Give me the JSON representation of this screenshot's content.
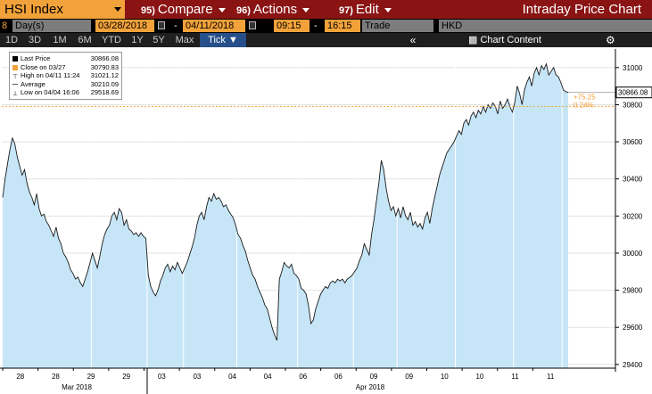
{
  "titlebar": {
    "ticker": "HSI Index",
    "menu": [
      {
        "num": "95)",
        "label": "Compare"
      },
      {
        "num": "96)",
        "label": "Actions"
      },
      {
        "num": "97)",
        "label": "Edit"
      }
    ],
    "title": "Intraday Price Chart"
  },
  "daterow": {
    "number": "8",
    "period_label": "Day(s)",
    "start_date": "03/28/2018",
    "end_date": "04/11/2018",
    "start_time": "09:15",
    "end_time": "16:15",
    "trade": "Trade",
    "currency": "HKD"
  },
  "periodrow": {
    "periods": [
      "1D",
      "3D",
      "1M",
      "6M",
      "YTD",
      "1Y",
      "5Y",
      "Max",
      "Tick ▼"
    ],
    "active": "Tick ▼",
    "collapse_icon": "double-chevron-left-icon",
    "chart_content": "Chart Content",
    "gear_icon": "gear-icon"
  },
  "legend": [
    {
      "label": "Last Price",
      "value": "30866.08",
      "icon": "square",
      "color": "#000000"
    },
    {
      "label": "Close on 03/27",
      "value": "30790.83",
      "icon": "square",
      "color": "#f2a23a"
    },
    {
      "label": "High on 04/11 11:24",
      "value": "31021.12",
      "icon": "high-marker",
      "color": "#555555"
    },
    {
      "label": "Average",
      "value": "30210.09",
      "icon": "dashed-line",
      "color": "#555555"
    },
    {
      "label": "Low on 04/04 16:06",
      "value": "29518.69",
      "icon": "low-marker",
      "color": "#555555"
    }
  ],
  "colors": {
    "area_fill": "#c6e6f7",
    "line": "#1a1a1a",
    "close_line": "#f2a23a",
    "background": "#ffffff"
  },
  "chart_data": {
    "type": "area",
    "y_ticks": [
      29400,
      29600,
      29800,
      30000,
      30200,
      30400,
      30600,
      30800,
      31000
    ],
    "ylim": [
      29380,
      31100
    ],
    "x_tick_labels": [
      "28",
      "28",
      "29",
      "29",
      "03",
      "03",
      "04",
      "04",
      "06",
      "06",
      "09",
      "09",
      "10",
      "10",
      "11",
      "11"
    ],
    "month_labels": [
      "Mar 2018",
      "Apr 2018"
    ],
    "last_price_label": "30866.08",
    "change_label": "+75.25",
    "change_pct_label": "0.24%",
    "close_value": 30790.83,
    "series": [
      {
        "name": "Last Price",
        "day_breaks_after_index": [
          36,
          59,
          74,
          96,
          121,
          144,
          162,
          186,
          210,
          230
        ],
        "values": [
          30300,
          30400,
          30480,
          30560,
          30620,
          30590,
          30520,
          30470,
          30420,
          30450,
          30380,
          30330,
          30300,
          30260,
          30320,
          30240,
          30200,
          30210,
          30170,
          30150,
          30120,
          30090,
          30140,
          30080,
          30050,
          30000,
          29980,
          29950,
          29910,
          29890,
          29860,
          29870,
          29840,
          29820,
          29860,
          29900,
          29950,
          30000,
          29960,
          29920,
          29980,
          30050,
          30100,
          30130,
          30150,
          30200,
          30220,
          30180,
          30240,
          30220,
          30150,
          30180,
          30130,
          30120,
          30100,
          30110,
          30090,
          30110,
          30090,
          30080,
          29880,
          29820,
          29790,
          29770,
          29800,
          29850,
          29880,
          29920,
          29940,
          29900,
          29930,
          29910,
          29950,
          29920,
          29890,
          29920,
          29950,
          29990,
          30030,
          30080,
          30150,
          30200,
          30220,
          30180,
          30250,
          30300,
          30280,
          30320,
          30290,
          30300,
          30280,
          30250,
          30260,
          30230,
          30210,
          30190,
          30150,
          30100,
          30080,
          30040,
          30010,
          29960,
          29920,
          29880,
          29860,
          29820,
          29790,
          29760,
          29720,
          29700,
          29650,
          29600,
          29560,
          29530,
          29860,
          29900,
          29950,
          29930,
          29920,
          29940,
          29890,
          29880,
          29860,
          29810,
          29800,
          29780,
          29720,
          29620,
          29640,
          29700,
          29740,
          29780,
          29800,
          29820,
          29810,
          29840,
          29850,
          29840,
          29860,
          29850,
          29860,
          29840,
          29860,
          29870,
          29880,
          29900,
          29920,
          29960,
          29990,
          30050,
          30020,
          29990,
          30100,
          30180,
          30280,
          30380,
          30500,
          30450,
          30350,
          30280,
          30230,
          30250,
          30200,
          30240,
          30190,
          30250,
          30200,
          30180,
          30220,
          30150,
          30170,
          30140,
          30160,
          30130,
          30190,
          30220,
          30160,
          30240,
          30300,
          30360,
          30420,
          30460,
          30500,
          30540,
          30560,
          30580,
          30600,
          30630,
          30660,
          30640,
          30700,
          30720,
          30690,
          30740,
          30760,
          30730,
          30770,
          30750,
          30790,
          30760,
          30800,
          30780,
          30810,
          30790,
          30750,
          30820,
          30780,
          30800,
          30830,
          30790,
          30760,
          30810,
          30900,
          30860,
          30800,
          30880,
          30920,
          30950,
          30900,
          30970,
          31000,
          30960,
          31010,
          30990,
          31020,
          30960,
          30980,
          31000,
          30960,
          30950,
          30920,
          30880,
          30870,
          30866.08
        ]
      }
    ]
  }
}
